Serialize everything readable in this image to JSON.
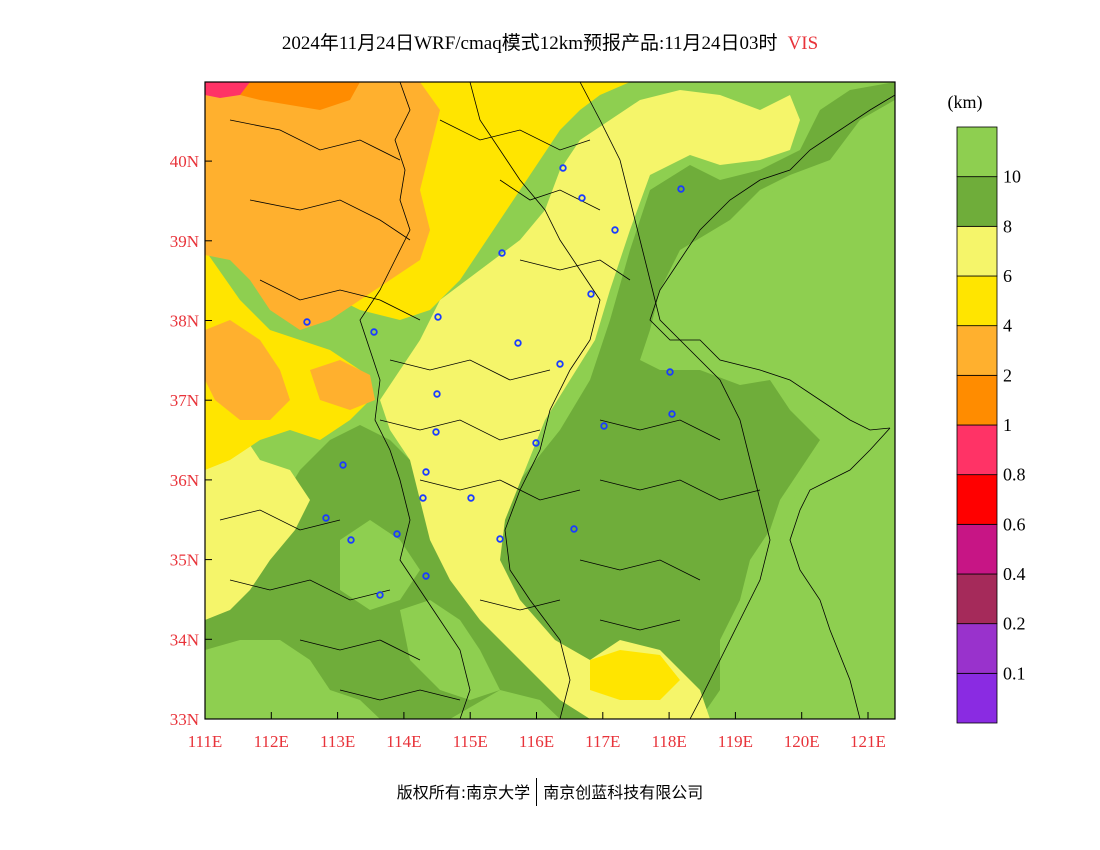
{
  "title": {
    "main": "2024年11月24日WRF/cmaq模式12km预报产品:11月24日03时",
    "variable": "VIS"
  },
  "unit": "(km)",
  "axes": {
    "lon_labels": [
      "111E",
      "112E",
      "113E",
      "114E",
      "115E",
      "116E",
      "117E",
      "118E",
      "119E",
      "120E",
      "121E"
    ],
    "lat_labels": [
      "33N",
      "34N",
      "35N",
      "36N",
      "37N",
      "38N",
      "39N",
      "40N"
    ]
  },
  "colorbar": {
    "levels": [
      "0.1",
      "0.2",
      "0.4",
      "0.6",
      "0.8",
      "1",
      "2",
      "4",
      "6",
      "8",
      "10"
    ],
    "colors": [
      "#8a2be2",
      "#9932cc",
      "#a52a5a",
      "#c71585",
      "#ff0000",
      "#ff3366",
      "#ff8c00",
      "#ffb02e",
      "#ffe500",
      "#f5f56a",
      "#6fad3a",
      "#8ecf50"
    ]
  },
  "colors": {
    "title_accent": "#e8333a",
    "axis_labels": "#e8333a",
    "station_marker": "#1a3cff"
  },
  "map_icons": {
    "stations": "city-marker-icon"
  },
  "copyright": {
    "left": "版权所有:南京大学",
    "right": "南京创蓝科技有限公司"
  }
}
